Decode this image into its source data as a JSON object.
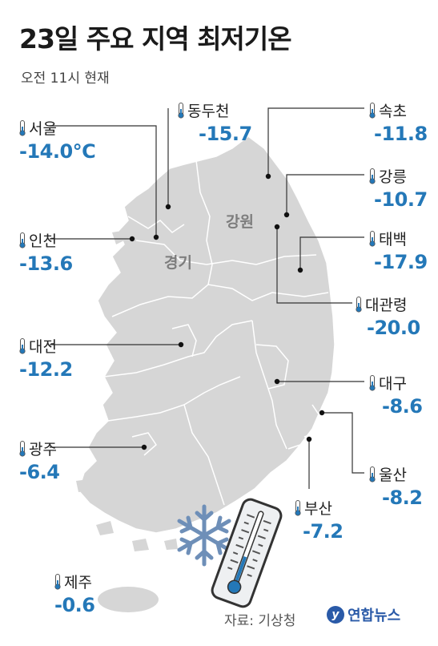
{
  "title": "23일 주요 지역 최저기온",
  "subtitle": "오전 11시 현재",
  "regions": {
    "gangwon": "강원",
    "gyeonggi": "경기"
  },
  "cities": {
    "seoul": {
      "name": "서울",
      "temp": "-14.0°C"
    },
    "dongducheon": {
      "name": "동두천",
      "temp": "-15.7"
    },
    "sokcho": {
      "name": "속초",
      "temp": "-11.8"
    },
    "gangneung": {
      "name": "강릉",
      "temp": "-10.7"
    },
    "taebaek": {
      "name": "태백",
      "temp": "-17.9"
    },
    "daegwallyeong": {
      "name": "대관령",
      "temp": "-20.0"
    },
    "incheon": {
      "name": "인천",
      "temp": "-13.6"
    },
    "daejeon": {
      "name": "대전",
      "temp": "-12.2"
    },
    "daegu": {
      "name": "대구",
      "temp": "-8.6"
    },
    "ulsan": {
      "name": "울산",
      "temp": "-8.2"
    },
    "gwangju": {
      "name": "광주",
      "temp": "-6.4"
    },
    "busan": {
      "name": "부산",
      "temp": "-7.2"
    },
    "jeju": {
      "name": "제주",
      "temp": "-0.6"
    }
  },
  "source": "자료: 기상청",
  "logo": "연합뉴스",
  "colors": {
    "map_fill": "#d6d6d6",
    "map_border": "#ffffff",
    "temp_text": "#2478b8",
    "thermometer": "#2478b8"
  }
}
